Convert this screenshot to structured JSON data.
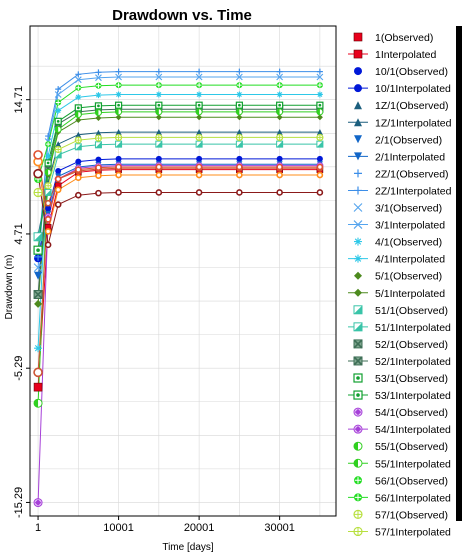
{
  "colors": {
    "background": "#ffffff",
    "axis": "#000000",
    "legend_bar": "#000000"
  },
  "chart_data": {
    "type": "line",
    "title": "Drawdown vs. Time",
    "xlabel": "Time  [days]",
    "ylabel": "Drawdown (m)",
    "xlim": [
      -1000,
      37000
    ],
    "ylim": [
      -16.3,
      20.2
    ],
    "xticks": [
      1,
      10001,
      20001,
      30001
    ],
    "yticks": [
      14.71,
      4.71,
      -5.29,
      -15.29
    ],
    "grid": true,
    "legend_position": "right",
    "time_points": [
      1,
      1250,
      2500,
      5000,
      7500,
      10001,
      15000,
      20001,
      25000,
      30001,
      35000
    ],
    "series": [
      {
        "name": "1(Observed)",
        "color": "#e8001c",
        "marker": "square",
        "kind": "observed",
        "values": [
          -6.7
        ]
      },
      {
        "name": "1Interpolated",
        "color": "#e8001c",
        "marker": "square",
        "kind": "interpolated",
        "values": [
          -6.7,
          5.2,
          8.3,
          9.3,
          9.45,
          9.5,
          9.5,
          9.5,
          9.5,
          9.5,
          9.5
        ]
      },
      {
        "name": "10/1(Observed)",
        "color": "#0018d8",
        "marker": "circle",
        "kind": "observed",
        "values": [
          2.9
        ]
      },
      {
        "name": "10/1Interpolated",
        "color": "#0018d8",
        "marker": "circle",
        "kind": "interpolated",
        "values": [
          2.9,
          6.6,
          9.4,
          10.1,
          10.25,
          10.3,
          10.3,
          10.3,
          10.3,
          10.3,
          10.3
        ]
      },
      {
        "name": "1Z/1(Observed)",
        "color": "#1c5f7e",
        "marker": "triangle-up",
        "kind": "observed",
        "values": [
          4.6
        ]
      },
      {
        "name": "1Z/1Interpolated",
        "color": "#1c5f7e",
        "marker": "triangle-up",
        "kind": "interpolated",
        "values": [
          4.6,
          8.5,
          11.4,
          12.1,
          12.25,
          12.3,
          12.3,
          12.3,
          12.3,
          12.3,
          12.3
        ]
      },
      {
        "name": "2/1(Observed)",
        "color": "#1166c8",
        "marker": "triangle-down",
        "kind": "observed",
        "values": [
          1.6
        ]
      },
      {
        "name": "2/1Interpolated",
        "color": "#1166c8",
        "marker": "triangle-down",
        "kind": "interpolated",
        "values": [
          1.6,
          6.2,
          9.0,
          9.7,
          9.85,
          9.9,
          9.9,
          9.9,
          9.9,
          9.9,
          9.9
        ]
      },
      {
        "name": "2Z/1(Observed)",
        "color": "#3c8ee8",
        "marker": "plus",
        "kind": "observed",
        "values": [
          3.0
        ]
      },
      {
        "name": "2Z/1Interpolated",
        "color": "#3c8ee8",
        "marker": "plus",
        "kind": "interpolated",
        "values": [
          3.0,
          12.0,
          15.5,
          16.6,
          16.75,
          16.8,
          16.8,
          16.8,
          16.8,
          16.8,
          16.8
        ]
      },
      {
        "name": "3/1(Observed)",
        "color": "#54a4ee",
        "marker": "x",
        "kind": "observed",
        "values": [
          2.2
        ]
      },
      {
        "name": "3/1Interpolated",
        "color": "#54a4ee",
        "marker": "x",
        "kind": "interpolated",
        "values": [
          2.2,
          11.6,
          15.1,
          16.2,
          16.35,
          16.4,
          16.4,
          16.4,
          16.4,
          16.4,
          16.4
        ]
      },
      {
        "name": "4/1(Observed)",
        "color": "#2ec8e8",
        "marker": "asterisk",
        "kind": "observed",
        "values": [
          -3.8
        ]
      },
      {
        "name": "4/1Interpolated",
        "color": "#2ec8e8",
        "marker": "asterisk",
        "kind": "interpolated",
        "values": [
          -3.8,
          10.5,
          13.9,
          14.9,
          15.05,
          15.1,
          15.1,
          15.1,
          15.1,
          15.1,
          15.1
        ]
      },
      {
        "name": "5/1(Observed)",
        "color": "#4d8a1e",
        "marker": "diamond",
        "kind": "observed",
        "values": [
          -0.5
        ]
      },
      {
        "name": "5/1Interpolated",
        "color": "#4d8a1e",
        "marker": "diamond",
        "kind": "interpolated",
        "values": [
          -0.5,
          9.1,
          12.3,
          13.2,
          13.35,
          13.4,
          13.4,
          13.4,
          13.4,
          13.4,
          13.4
        ]
      },
      {
        "name": "51/1(Observed)",
        "color": "#39c4a8",
        "marker": "half-square",
        "kind": "observed",
        "values": [
          4.5
        ]
      },
      {
        "name": "51/1Interpolated",
        "color": "#39c4a8",
        "marker": "half-square",
        "kind": "interpolated",
        "values": [
          4.5,
          7.8,
          10.6,
          11.2,
          11.35,
          11.4,
          11.4,
          11.4,
          11.4,
          11.4,
          11.4
        ]
      },
      {
        "name": "52/1(Observed)",
        "color": "#3e6e56",
        "marker": "x-square",
        "kind": "observed",
        "values": [
          0.2
        ]
      },
      {
        "name": "52/1Interpolated",
        "color": "#3e6e56",
        "marker": "x-square",
        "kind": "interpolated",
        "values": [
          0.2,
          9.6,
          12.9,
          13.8,
          13.95,
          14.0,
          14.0,
          14.0,
          14.0,
          14.0,
          14.0
        ]
      },
      {
        "name": "53/1(Observed)",
        "color": "#10a030",
        "marker": "dot-square",
        "kind": "observed",
        "values": [
          3.5
        ]
      },
      {
        "name": "53/1Interpolated",
        "color": "#10a030",
        "marker": "dot-square",
        "kind": "interpolated",
        "values": [
          3.5,
          10.0,
          13.1,
          14.1,
          14.25,
          14.3,
          14.3,
          14.3,
          14.3,
          14.3,
          14.3
        ]
      },
      {
        "name": "54/1(Observed)",
        "color": "#a640d8",
        "marker": "diamond-circle",
        "kind": "observed",
        "values": [
          -15.3
        ]
      },
      {
        "name": "54/1Interpolated",
        "color": "#a640d8",
        "marker": "diamond-circle",
        "kind": "interpolated",
        "values": [
          -15.3,
          6.0,
          8.8,
          9.6,
          9.75,
          9.8,
          9.8,
          9.8,
          9.8,
          9.8,
          9.8
        ]
      },
      {
        "name": "55/1(Observed)",
        "color": "#30d020",
        "marker": "half-circle",
        "kind": "observed",
        "values": [
          -7.9
        ]
      },
      {
        "name": "55/1Interpolated",
        "color": "#30d020",
        "marker": "half-circle",
        "kind": "interpolated",
        "values": [
          -7.9,
          9.3,
          12.5,
          13.6,
          13.75,
          13.8,
          13.8,
          13.8,
          13.8,
          13.8,
          13.8
        ]
      },
      {
        "name": "56/1(Observed)",
        "color": "#22dd22",
        "marker": "plus-circle",
        "kind": "observed",
        "values": [
          8.8
        ]
      },
      {
        "name": "56/1Interpolated",
        "color": "#22dd22",
        "marker": "plus-circle",
        "kind": "interpolated",
        "values": [
          8.8,
          11.4,
          14.5,
          15.6,
          15.75,
          15.8,
          15.8,
          15.8,
          15.8,
          15.8,
          15.8
        ]
      },
      {
        "name": "57/1(Observed)",
        "color": "#b8e040",
        "marker": "circle-cross",
        "kind": "observed",
        "values": [
          7.8
        ]
      },
      {
        "name": "57/1Interpolated",
        "color": "#b8e040",
        "marker": "circle-cross",
        "kind": "interpolated",
        "values": [
          7.8,
          8.3,
          11.0,
          11.7,
          11.85,
          11.9,
          11.9,
          11.9,
          11.9,
          11.9,
          11.9
        ]
      }
    ],
    "extra_series_colors": [
      "#ff8c1a",
      "#cc5533",
      "#8b1a1a",
      "#e05030"
    ],
    "extra_series_values": [
      [
        10.1,
        4.9,
        8.0,
        8.9,
        9.05,
        9.1,
        9.1,
        9.1,
        9.1,
        9.1,
        9.1
      ],
      [
        -5.6,
        7.0,
        8.8,
        9.4,
        9.55,
        9.6,
        9.6,
        9.6,
        9.6,
        9.6,
        9.6
      ],
      [
        9.2,
        3.9,
        6.9,
        7.6,
        7.75,
        7.8,
        7.8,
        7.8,
        7.8,
        7.8,
        7.8
      ],
      [
        10.6,
        5.8,
        8.8,
        9.5,
        9.65,
        9.7,
        9.7,
        9.7,
        9.7,
        9.7,
        9.7
      ]
    ]
  }
}
